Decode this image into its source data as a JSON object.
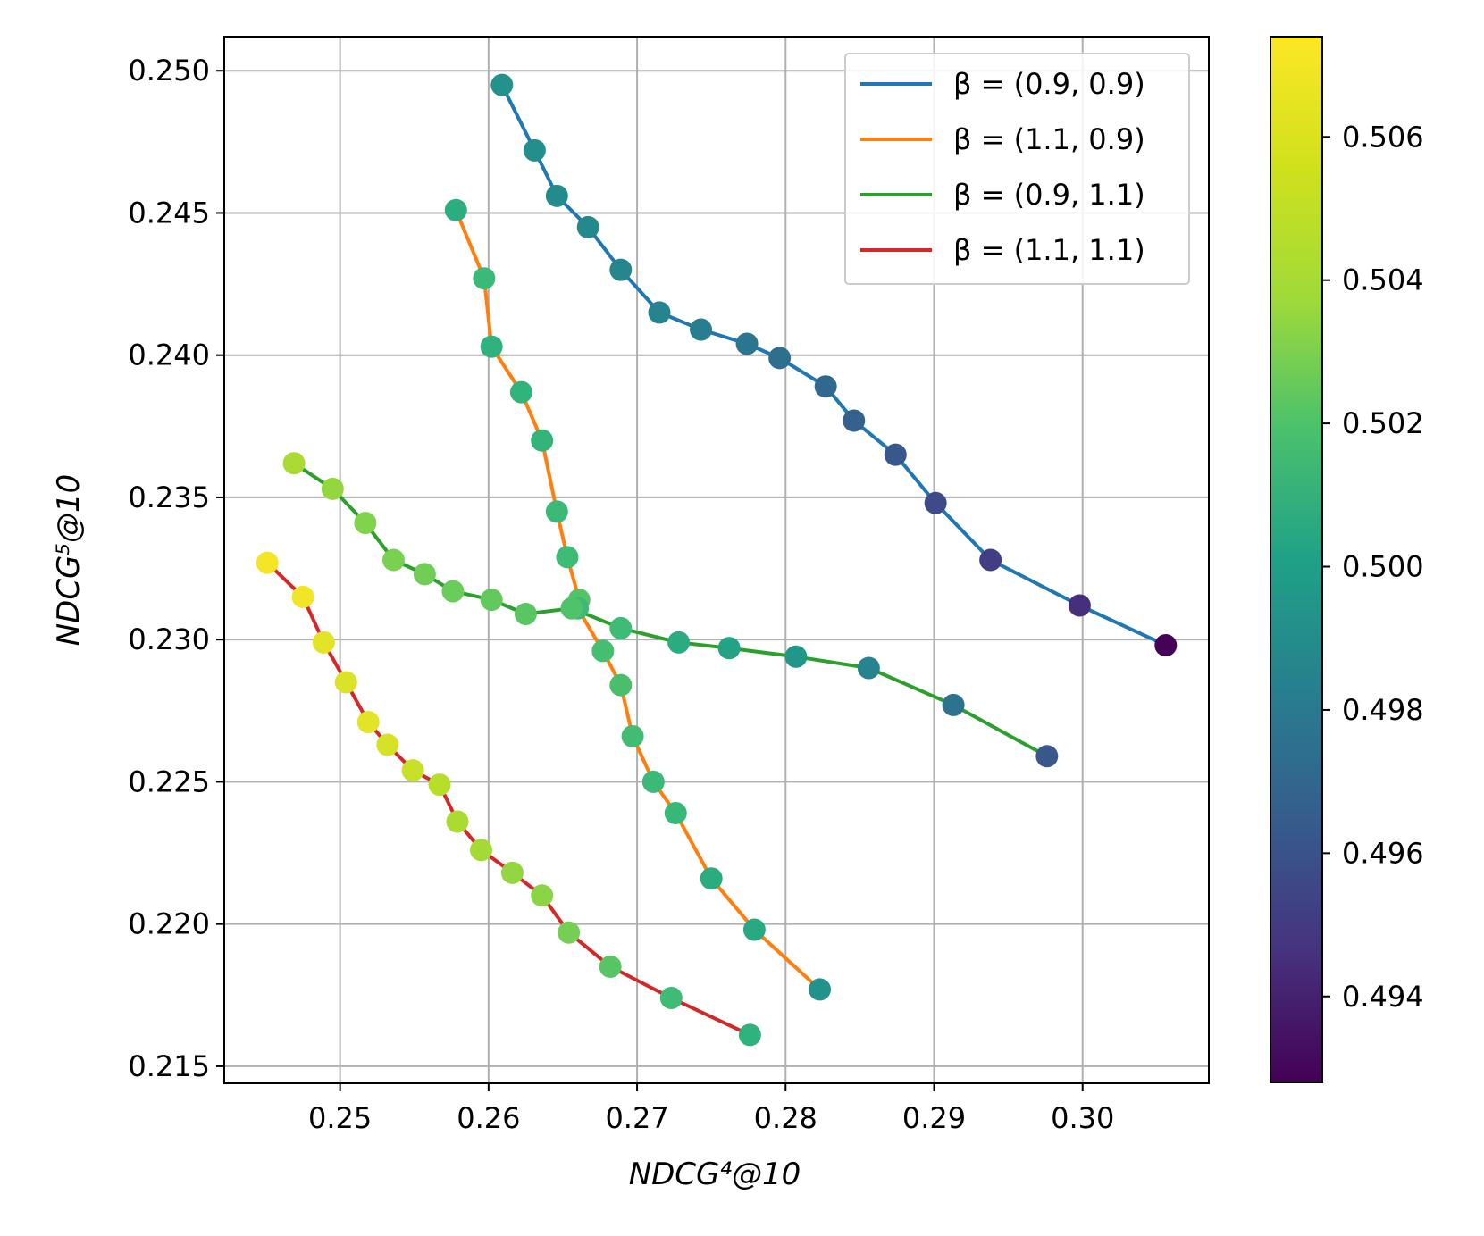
{
  "chart_data": {
    "type": "scatter",
    "xlabel": "NDCG⁴@10",
    "ylabel": "NDCG⁵@10",
    "xlim": [
      0.2422,
      0.3085
    ],
    "ylim": [
      0.2144,
      0.2512
    ],
    "x_ticks": [
      "0.25",
      "0.26",
      "0.27",
      "0.28",
      "0.29",
      "0.30"
    ],
    "y_ticks": [
      "0.215",
      "0.220",
      "0.225",
      "0.230",
      "0.235",
      "0.240",
      "0.245",
      "0.250"
    ],
    "grid": true,
    "legend_position": "top-right",
    "colorbar": {
      "colormap": "viridis",
      "range": [
        0.4928,
        0.5074
      ],
      "ticks": [
        "0.494",
        "0.496",
        "0.498",
        "0.500",
        "0.502",
        "0.504",
        "0.506"
      ]
    },
    "series": [
      {
        "name": "β = (0.9, 0.9)",
        "line_color": "#1f77b4",
        "x": [
          0.2609,
          0.2631,
          0.2646,
          0.2667,
          0.2689,
          0.2715,
          0.2743,
          0.2774,
          0.2796,
          0.2827,
          0.2846,
          0.2874,
          0.2901,
          0.2938,
          0.2998,
          0.3056
        ],
        "y": [
          0.2495,
          0.2472,
          0.2456,
          0.2445,
          0.243,
          0.2415,
          0.2409,
          0.2404,
          0.2399,
          0.2389,
          0.2377,
          0.2365,
          0.2348,
          0.2328,
          0.2312,
          0.2298
        ],
        "c": [
          0.5002,
          0.5,
          0.4998,
          0.4997,
          0.4996,
          0.4994,
          0.499,
          0.4985,
          0.4981,
          0.4977,
          0.4973,
          0.4968,
          0.4962,
          0.4955,
          0.4948,
          0.4929
        ]
      },
      {
        "name": "β = (1.1, 0.9)",
        "line_color": "#ff7f0e",
        "x": [
          0.2578,
          0.2597,
          0.2602,
          0.2622,
          0.2636,
          0.2646,
          0.2653,
          0.2661,
          0.266,
          0.2677,
          0.2689,
          0.2697,
          0.2711,
          0.2726,
          0.275,
          0.2779,
          0.2823
        ],
        "y": [
          0.2451,
          0.2427,
          0.2403,
          0.2387,
          0.237,
          0.2345,
          0.2329,
          0.2314,
          0.2311,
          0.2296,
          0.2284,
          0.2266,
          0.225,
          0.2239,
          0.2216,
          0.2198,
          0.2177
        ],
        "c": [
          0.5019,
          0.5027,
          0.5022,
          0.5023,
          0.5024,
          0.5027,
          0.5028,
          0.5034,
          0.5027,
          0.503,
          0.5031,
          0.5029,
          0.5027,
          0.5026,
          0.5018,
          0.5016,
          0.5002
        ]
      },
      {
        "name": "β = (0.9, 1.1)",
        "line_color": "#2ca02c",
        "x": [
          0.2469,
          0.2495,
          0.2517,
          0.2536,
          0.2557,
          0.2576,
          0.2602,
          0.2625,
          0.2656,
          0.2689,
          0.2728,
          0.2762,
          0.2807,
          0.2856,
          0.2913,
          0.2976
        ],
        "y": [
          0.2362,
          0.2353,
          0.2341,
          0.2328,
          0.2323,
          0.2317,
          0.2314,
          0.2309,
          0.2311,
          0.2304,
          0.2299,
          0.2297,
          0.2294,
          0.229,
          0.2277,
          0.2259
        ],
        "c": [
          0.5055,
          0.505,
          0.5046,
          0.5044,
          0.5042,
          0.504,
          0.5038,
          0.5036,
          0.5033,
          0.5028,
          0.5018,
          0.5012,
          0.5005,
          0.4994,
          0.4983,
          0.4968
        ]
      },
      {
        "name": "β = (1.1, 1.1)",
        "line_color": "#d62728",
        "x": [
          0.2451,
          0.2475,
          0.2489,
          0.2504,
          0.2519,
          0.2532,
          0.2549,
          0.2567,
          0.2579,
          0.2595,
          0.2616,
          0.2636,
          0.2654,
          0.2682,
          0.2723,
          0.2776
        ],
        "y": [
          0.2327,
          0.2315,
          0.2299,
          0.2285,
          0.2271,
          0.2263,
          0.2254,
          0.2249,
          0.2236,
          0.2226,
          0.2218,
          0.221,
          0.2197,
          0.2185,
          0.2174,
          0.2161
        ],
        "c": [
          0.5072,
          0.5071,
          0.5068,
          0.5066,
          0.5068,
          0.5065,
          0.5062,
          0.5058,
          0.5055,
          0.5054,
          0.505,
          0.5048,
          0.5043,
          0.5035,
          0.5028,
          0.5022
        ]
      }
    ]
  }
}
